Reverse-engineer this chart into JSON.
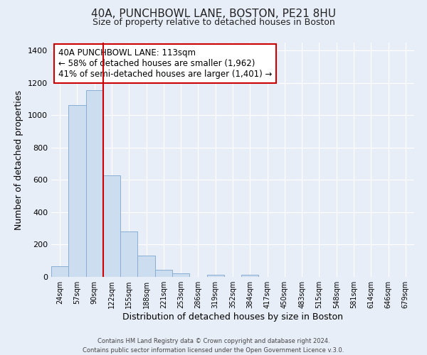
{
  "title": "40A, PUNCHBOWL LANE, BOSTON, PE21 8HU",
  "subtitle": "Size of property relative to detached houses in Boston",
  "xlabel": "Distribution of detached houses by size in Boston",
  "ylabel": "Number of detached properties",
  "bin_labels": [
    "24sqm",
    "57sqm",
    "90sqm",
    "122sqm",
    "155sqm",
    "188sqm",
    "221sqm",
    "253sqm",
    "286sqm",
    "319sqm",
    "352sqm",
    "384sqm",
    "417sqm",
    "450sqm",
    "483sqm",
    "515sqm",
    "548sqm",
    "581sqm",
    "614sqm",
    "646sqm",
    "679sqm"
  ],
  "bar_heights": [
    65,
    1065,
    1155,
    630,
    280,
    130,
    45,
    20,
    0,
    15,
    0,
    15,
    0,
    0,
    0,
    0,
    0,
    0,
    0,
    0,
    0
  ],
  "bar_color": "#cdddf0",
  "bar_edgecolor": "#88aed4",
  "vline_x_data": 2.5,
  "vline_color": "#cc0000",
  "annotation_title": "40A PUNCHBOWL LANE: 113sqm",
  "annotation_line1": "← 58% of detached houses are smaller (1,962)",
  "annotation_line2": "41% of semi-detached houses are larger (1,401) →",
  "annotation_box_facecolor": "#ffffff",
  "annotation_box_edgecolor": "#cc0000",
  "ylim": [
    0,
    1450
  ],
  "yticks": [
    0,
    200,
    400,
    600,
    800,
    1000,
    1200,
    1400
  ],
  "background_color": "#e8eef8",
  "plot_bg_color": "#e8eef8",
  "grid_color": "#ffffff",
  "title_fontsize": 11,
  "subtitle_fontsize": 9,
  "footer_line1": "Contains HM Land Registry data © Crown copyright and database right 2024.",
  "footer_line2": "Contains public sector information licensed under the Open Government Licence v.3.0."
}
